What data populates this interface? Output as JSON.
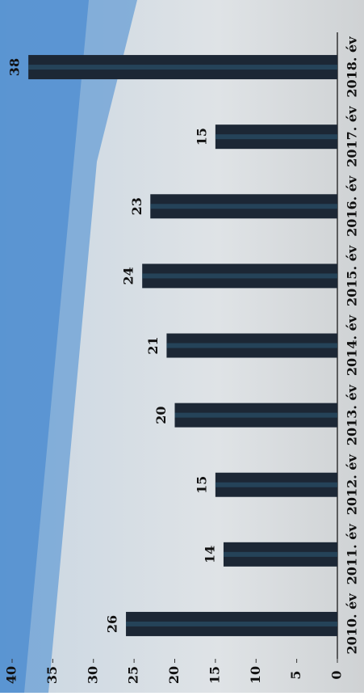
{
  "chart_data": {
    "type": "bar",
    "categories": [
      "2010. év",
      "2011. év",
      "2012. év",
      "2013. év",
      "2014. év",
      "2015. év",
      "2016. év",
      "2017. év",
      "2018. év"
    ],
    "values": [
      26,
      14,
      15,
      20,
      21,
      24,
      23,
      15,
      38
    ],
    "color": "#1c2735",
    "ylim": [
      0,
      40
    ],
    "yticks": [
      0,
      5,
      10,
      15,
      20,
      25,
      30,
      35,
      40
    ]
  }
}
